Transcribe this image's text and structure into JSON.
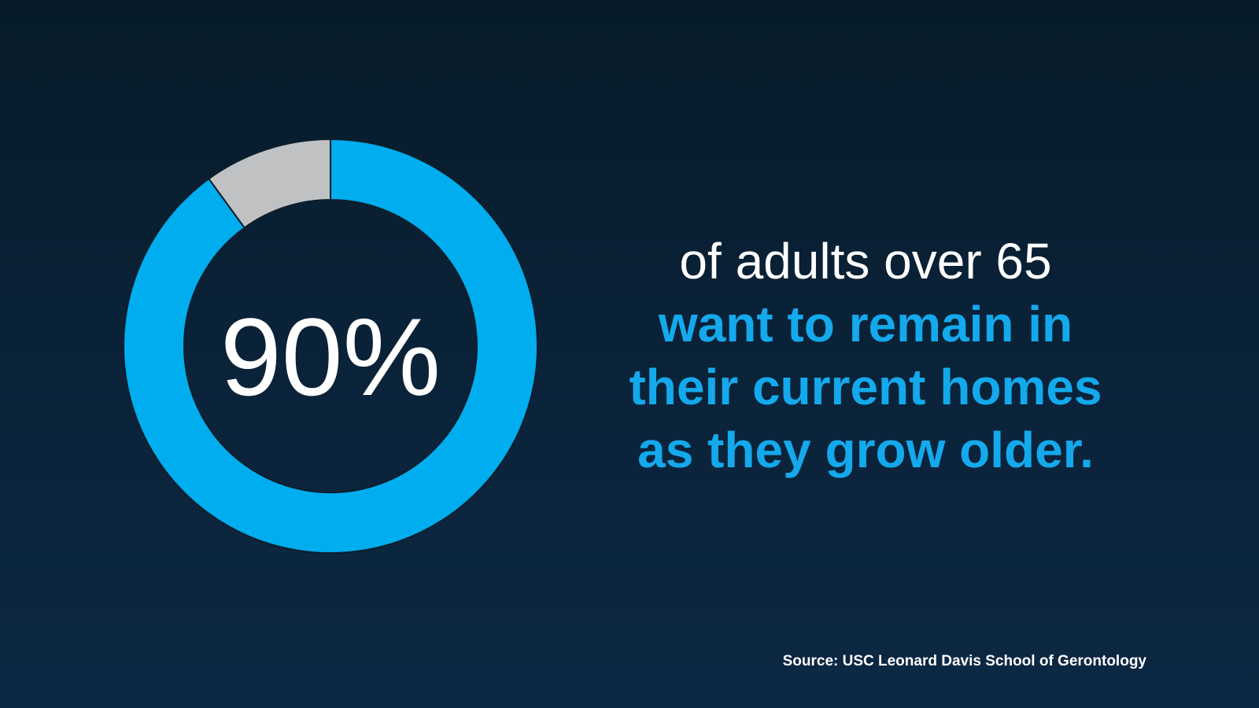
{
  "chart_data": {
    "type": "pie",
    "values": [
      90,
      10
    ],
    "center_label": "90%",
    "colors": [
      "#00aeef",
      "#bfc1c3"
    ],
    "title": ""
  },
  "headline": {
    "line1": "of adults over 65",
    "line2": "want to remain in",
    "line3": "their current homes",
    "line4": "as they grow older."
  },
  "source": "Source: USC Leonard Davis School of Gerontology",
  "colors": {
    "background_top": "#071b29",
    "background_bottom": "#0c2844",
    "accent_blue": "#00aeef",
    "text_blue": "#14a9ec",
    "remainder_gray": "#bfc1c3",
    "text_white": "#ffffff"
  }
}
